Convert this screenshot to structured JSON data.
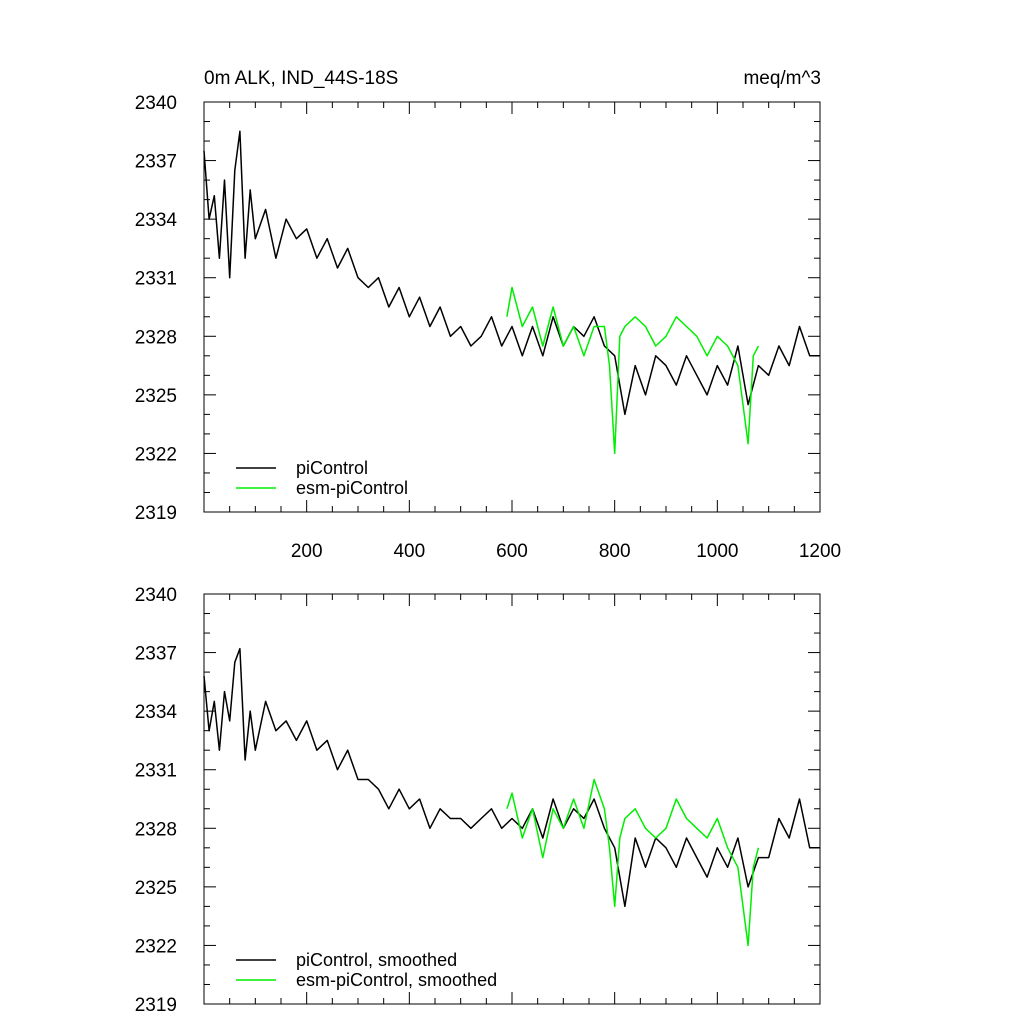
{
  "header": {
    "left_title": "0m ALK, IND_44S-18S",
    "right_units": "meq/m^3"
  },
  "colors": {
    "piControl": "#000000",
    "esm_piControl": "#00ee00"
  },
  "chart_data": [
    {
      "type": "line",
      "title": "0m ALK, IND_44S-18S",
      "units": "meq/m^3",
      "xlim": [
        0,
        1200
      ],
      "ylim": [
        2319,
        2340
      ],
      "x_ticks": [
        200,
        400,
        600,
        800,
        1000,
        1200
      ],
      "x_tick_labels": [
        "200",
        "400",
        "600",
        "800",
        "1000",
        "1200"
      ],
      "y_ticks": [
        2319,
        2322,
        2325,
        2328,
        2331,
        2334,
        2337,
        2340
      ],
      "y_tick_labels": [
        "2319",
        "2322",
        "2325",
        "2328",
        "2331",
        "2334",
        "2337",
        "2340"
      ],
      "legend_position": "bottom-left",
      "series": [
        {
          "name": "piControl",
          "color": "#000000",
          "x": [
            0,
            10,
            20,
            30,
            40,
            50,
            60,
            70,
            80,
            90,
            100,
            120,
            140,
            160,
            180,
            200,
            220,
            240,
            260,
            280,
            300,
            320,
            340,
            360,
            380,
            400,
            420,
            440,
            460,
            480,
            500,
            520,
            540,
            560,
            580,
            600,
            620,
            640,
            660,
            680,
            700,
            720,
            740,
            760,
            780,
            800,
            820,
            840,
            860,
            880,
            900,
            920,
            940,
            960,
            980,
            1000,
            1020,
            1040,
            1060,
            1080,
            1100,
            1120,
            1140,
            1160,
            1180,
            1200
          ],
          "y": [
            2337.5,
            2334.0,
            2335.2,
            2332.0,
            2336.0,
            2331.0,
            2336.5,
            2338.5,
            2332.0,
            2335.5,
            2333.0,
            2334.5,
            2332.0,
            2334.0,
            2333.0,
            2333.5,
            2332.0,
            2333.0,
            2331.5,
            2332.5,
            2331.0,
            2330.5,
            2331.0,
            2329.5,
            2330.5,
            2329.0,
            2330.0,
            2328.5,
            2329.5,
            2328.0,
            2328.5,
            2327.5,
            2328.0,
            2329.0,
            2327.5,
            2328.5,
            2327.0,
            2328.5,
            2327.0,
            2329.0,
            2327.5,
            2328.5,
            2328.0,
            2329.0,
            2327.5,
            2327.0,
            2324.0,
            2326.5,
            2325.0,
            2327.0,
            2326.5,
            2325.5,
            2327.0,
            2326.0,
            2325.0,
            2326.5,
            2325.5,
            2327.5,
            2324.5,
            2326.5,
            2326.0,
            2327.5,
            2326.5,
            2328.5,
            2327.0,
            2327.0
          ]
        },
        {
          "name": "esm-piControl",
          "color": "#00ee00",
          "x": [
            590,
            600,
            620,
            640,
            660,
            680,
            700,
            720,
            740,
            760,
            780,
            790,
            800,
            810,
            820,
            840,
            860,
            880,
            900,
            920,
            940,
            960,
            980,
            1000,
            1020,
            1040,
            1060,
            1070,
            1080
          ],
          "y": [
            2329.0,
            2330.5,
            2328.5,
            2329.5,
            2327.5,
            2329.5,
            2327.5,
            2328.5,
            2327.0,
            2328.5,
            2328.5,
            2326.5,
            2322.0,
            2328.0,
            2328.5,
            2329.0,
            2328.5,
            2327.5,
            2328.0,
            2329.0,
            2328.5,
            2328.0,
            2327.0,
            2328.0,
            2327.5,
            2326.5,
            2322.5,
            2327.0,
            2327.5
          ]
        }
      ]
    },
    {
      "type": "line",
      "xlim": [
        0,
        1200
      ],
      "ylim": [
        2319,
        2340
      ],
      "y_ticks": [
        2319,
        2322,
        2325,
        2328,
        2331,
        2334,
        2337,
        2340
      ],
      "y_tick_labels": [
        "2319",
        "2322",
        "2325",
        "2328",
        "2331",
        "2334",
        "2337",
        "2340"
      ],
      "legend_position": "bottom-left",
      "series": [
        {
          "name": "piControl, smoothed",
          "color": "#000000",
          "x": [
            0,
            10,
            20,
            30,
            40,
            50,
            60,
            70,
            80,
            90,
            100,
            120,
            140,
            160,
            180,
            200,
            220,
            240,
            260,
            280,
            300,
            320,
            340,
            360,
            380,
            400,
            420,
            440,
            460,
            480,
            500,
            520,
            540,
            560,
            580,
            600,
            620,
            640,
            660,
            680,
            700,
            720,
            740,
            760,
            780,
            800,
            820,
            840,
            860,
            880,
            900,
            920,
            940,
            960,
            980,
            1000,
            1020,
            1040,
            1060,
            1080,
            1100,
            1120,
            1140,
            1160,
            1180,
            1200
          ],
          "y": [
            2335.8,
            2333.0,
            2334.5,
            2332.0,
            2335.0,
            2333.5,
            2336.5,
            2337.2,
            2331.5,
            2334.0,
            2332.0,
            2334.5,
            2333.0,
            2333.5,
            2332.5,
            2333.5,
            2332.0,
            2332.5,
            2331.0,
            2332.0,
            2330.5,
            2330.5,
            2330.0,
            2329.0,
            2330.0,
            2329.0,
            2329.5,
            2328.0,
            2329.0,
            2328.5,
            2328.5,
            2328.0,
            2328.5,
            2329.0,
            2328.0,
            2328.5,
            2328.0,
            2329.0,
            2327.5,
            2329.5,
            2328.0,
            2329.0,
            2328.5,
            2329.5,
            2328.0,
            2327.0,
            2324.0,
            2327.5,
            2326.0,
            2327.5,
            2327.0,
            2326.0,
            2327.5,
            2326.5,
            2325.5,
            2327.0,
            2326.0,
            2327.5,
            2325.0,
            2326.5,
            2326.5,
            2328.5,
            2327.5,
            2329.5,
            2327.0,
            2327.0
          ]
        },
        {
          "name": "esm-piControl, smoothed",
          "color": "#00ee00",
          "x": [
            590,
            600,
            620,
            640,
            660,
            680,
            700,
            720,
            740,
            760,
            780,
            790,
            800,
            810,
            820,
            840,
            860,
            880,
            900,
            920,
            940,
            960,
            980,
            1000,
            1020,
            1040,
            1060,
            1070,
            1080
          ],
          "y": [
            2329.0,
            2329.8,
            2327.5,
            2329.0,
            2326.5,
            2329.0,
            2328.0,
            2329.5,
            2328.0,
            2330.5,
            2329.0,
            2327.0,
            2324.0,
            2327.5,
            2328.5,
            2329.0,
            2328.0,
            2327.5,
            2328.0,
            2329.5,
            2328.5,
            2328.0,
            2327.5,
            2328.5,
            2327.0,
            2326.0,
            2322.0,
            2326.0,
            2327.0
          ]
        }
      ]
    }
  ]
}
